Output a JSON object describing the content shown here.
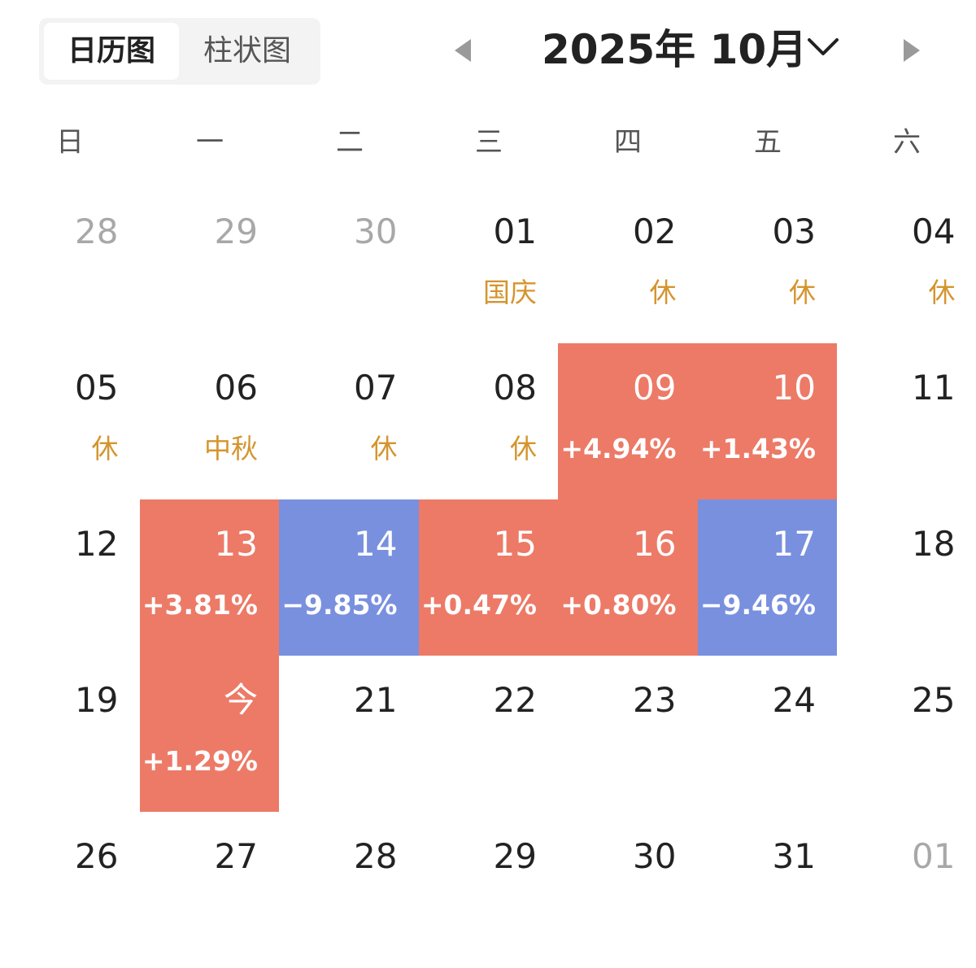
{
  "tabs": [
    {
      "label": "日历图",
      "active": true
    },
    {
      "label": "柱状图",
      "active": false
    }
  ],
  "header": {
    "month_title": "2025年 10月",
    "prev_icon": "triangle-left-icon",
    "next_icon": "triangle-right-icon",
    "dropdown_icon": "chevron-down-icon"
  },
  "weekdays": [
    "日",
    "一",
    "二",
    "三",
    "四",
    "五",
    "六"
  ],
  "colors": {
    "up": "#ec7a67",
    "down": "#7990df",
    "holiday_text": "#d4952f",
    "other_month_text": "#a8a8a8"
  },
  "weeks": [
    [
      {
        "day": "28",
        "other": true,
        "sub": "",
        "kind": ""
      },
      {
        "day": "29",
        "other": true,
        "sub": "",
        "kind": ""
      },
      {
        "day": "30",
        "other": true,
        "sub": "",
        "kind": ""
      },
      {
        "day": "01",
        "other": false,
        "sub": "国庆",
        "kind": "holiday"
      },
      {
        "day": "02",
        "other": false,
        "sub": "休",
        "kind": "holiday"
      },
      {
        "day": "03",
        "other": false,
        "sub": "休",
        "kind": "holiday"
      },
      {
        "day": "04",
        "other": false,
        "sub": "休",
        "kind": "holiday"
      }
    ],
    [
      {
        "day": "05",
        "other": false,
        "sub": "休",
        "kind": "holiday"
      },
      {
        "day": "06",
        "other": false,
        "sub": "中秋",
        "kind": "holiday"
      },
      {
        "day": "07",
        "other": false,
        "sub": "休",
        "kind": "holiday"
      },
      {
        "day": "08",
        "other": false,
        "sub": "休",
        "kind": "holiday"
      },
      {
        "day": "09",
        "other": false,
        "sub": "+4.94%",
        "kind": "up"
      },
      {
        "day": "10",
        "other": false,
        "sub": "+1.43%",
        "kind": "up"
      },
      {
        "day": "11",
        "other": false,
        "sub": "",
        "kind": ""
      }
    ],
    [
      {
        "day": "12",
        "other": false,
        "sub": "",
        "kind": ""
      },
      {
        "day": "13",
        "other": false,
        "sub": "+3.81%",
        "kind": "up"
      },
      {
        "day": "14",
        "other": false,
        "sub": "−9.85%",
        "kind": "down"
      },
      {
        "day": "15",
        "other": false,
        "sub": "+0.47%",
        "kind": "up"
      },
      {
        "day": "16",
        "other": false,
        "sub": "+0.80%",
        "kind": "up"
      },
      {
        "day": "17",
        "other": false,
        "sub": "−9.46%",
        "kind": "down"
      },
      {
        "day": "18",
        "other": false,
        "sub": "",
        "kind": ""
      }
    ],
    [
      {
        "day": "19",
        "other": false,
        "sub": "",
        "kind": ""
      },
      {
        "day": "今",
        "other": false,
        "sub": "+1.29%",
        "kind": "up"
      },
      {
        "day": "21",
        "other": false,
        "sub": "",
        "kind": ""
      },
      {
        "day": "22",
        "other": false,
        "sub": "",
        "kind": ""
      },
      {
        "day": "23",
        "other": false,
        "sub": "",
        "kind": ""
      },
      {
        "day": "24",
        "other": false,
        "sub": "",
        "kind": ""
      },
      {
        "day": "25",
        "other": false,
        "sub": "",
        "kind": ""
      }
    ],
    [
      {
        "day": "26",
        "other": false,
        "sub": "",
        "kind": ""
      },
      {
        "day": "27",
        "other": false,
        "sub": "",
        "kind": ""
      },
      {
        "day": "28",
        "other": false,
        "sub": "",
        "kind": ""
      },
      {
        "day": "29",
        "other": false,
        "sub": "",
        "kind": ""
      },
      {
        "day": "30",
        "other": false,
        "sub": "",
        "kind": ""
      },
      {
        "day": "31",
        "other": false,
        "sub": "",
        "kind": ""
      },
      {
        "day": "01",
        "other": true,
        "sub": "",
        "kind": ""
      }
    ]
  ]
}
